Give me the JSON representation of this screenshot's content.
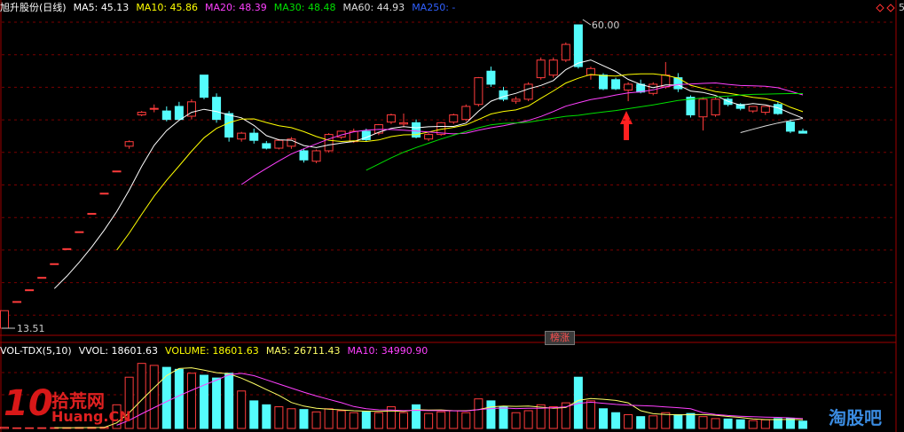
{
  "chart_data": {
    "type": "candlestick",
    "title": "旭升股份(日线)",
    "up_color": "#ff3c3c",
    "down_color": "#54fcfc",
    "ylim": [
      12.83,
      61.36
    ],
    "ohlc": [
      [
        13.51,
        16.2,
        13.51,
        16.2
      ],
      [
        17.6,
        17.6,
        17.6,
        17.6
      ],
      [
        19.4,
        19.4,
        19.4,
        19.4
      ],
      [
        21.3,
        21.3,
        21.3,
        21.3
      ],
      [
        23.4,
        23.4,
        23.4,
        23.4
      ],
      [
        25.7,
        25.7,
        25.7,
        25.7
      ],
      [
        28.3,
        28.3,
        28.3,
        28.3
      ],
      [
        31.1,
        31.1,
        31.1,
        31.1
      ],
      [
        34.2,
        34.2,
        34.2,
        34.2
      ],
      [
        37.6,
        37.6,
        37.6,
        37.6
      ],
      [
        41.4,
        42.3,
        41.0,
        42.1
      ],
      [
        46.2,
        46.8,
        46.0,
        46.6
      ],
      [
        47.2,
        47.8,
        46.6,
        47.2
      ],
      [
        46.8,
        47.5,
        45.2,
        45.5
      ],
      [
        47.5,
        48.2,
        45.3,
        45.5
      ],
      [
        46.0,
        48.6,
        45.5,
        48.2
      ],
      [
        52.3,
        52.3,
        48.6,
        48.9
      ],
      [
        48.9,
        49.5,
        45.0,
        45.5
      ],
      [
        46.4,
        46.8,
        42.1,
        42.8
      ],
      [
        42.5,
        43.6,
        42.1,
        43.4
      ],
      [
        43.4,
        44.1,
        41.8,
        42.3
      ],
      [
        41.8,
        42.2,
        40.9,
        41.1
      ],
      [
        41.1,
        42.5,
        40.9,
        42.3
      ],
      [
        41.4,
        42.8,
        41.0,
        42.5
      ],
      [
        40.7,
        41.0,
        38.9,
        39.3
      ],
      [
        39.1,
        40.9,
        38.8,
        40.7
      ],
      [
        40.7,
        43.4,
        40.4,
        43.2
      ],
      [
        42.8,
        43.8,
        42.5,
        43.7
      ],
      [
        42.1,
        44.1,
        41.9,
        43.7
      ],
      [
        43.7,
        44.1,
        42.1,
        42.4
      ],
      [
        43.4,
        44.8,
        43.1,
        44.7
      ],
      [
        45.1,
        46.4,
        44.8,
        46.2
      ],
      [
        44.8,
        46.4,
        44.3,
        45.0
      ],
      [
        45.0,
        45.5,
        42.6,
        42.8
      ],
      [
        42.5,
        43.4,
        42.2,
        43.2
      ],
      [
        43.2,
        45.1,
        43.0,
        45.0
      ],
      [
        45.1,
        46.4,
        44.8,
        46.2
      ],
      [
        45.5,
        47.8,
        45.2,
        47.5
      ],
      [
        47.8,
        52.0,
        47.5,
        51.9
      ],
      [
        52.9,
        53.6,
        50.5,
        50.9
      ],
      [
        49.9,
        50.5,
        48.3,
        48.6
      ],
      [
        48.3,
        49.0,
        47.9,
        48.6
      ],
      [
        48.6,
        51.2,
        48.3,
        50.9
      ],
      [
        51.9,
        55.0,
        51.6,
        54.6
      ],
      [
        52.3,
        55.0,
        51.9,
        54.6
      ],
      [
        54.6,
        57.3,
        54.3,
        57.0
      ],
      [
        60.0,
        60.0,
        53.3,
        53.6
      ],
      [
        52.3,
        53.6,
        51.6,
        53.3
      ],
      [
        52.3,
        52.6,
        50.0,
        50.2
      ],
      [
        51.6,
        51.9,
        50.0,
        50.2
      ],
      [
        50.0,
        51.2,
        48.3,
        50.9
      ],
      [
        50.9,
        51.6,
        49.5,
        49.7
      ],
      [
        49.5,
        51.2,
        49.2,
        50.9
      ],
      [
        50.5,
        54.3,
        50.2,
        52.3
      ],
      [
        51.9,
        52.6,
        49.7,
        50.2
      ],
      [
        48.9,
        49.2,
        45.8,
        46.2
      ],
      [
        45.9,
        48.9,
        43.8,
        48.6
      ],
      [
        46.2,
        48.9,
        45.9,
        48.6
      ],
      [
        48.6,
        48.9,
        47.5,
        47.8
      ],
      [
        47.8,
        48.0,
        46.9,
        47.2
      ],
      [
        46.8,
        47.5,
        46.5,
        47.5
      ],
      [
        46.6,
        47.5,
        46.2,
        47.5
      ],
      [
        47.8,
        48.2,
        46.2,
        46.4
      ],
      [
        45.1,
        45.5,
        43.4,
        43.7
      ],
      [
        43.7,
        44.1,
        43.4,
        43.4
      ]
    ],
    "ma": [
      {
        "name": "MA5",
        "value": 45.13,
        "color": "#ffffff"
      },
      {
        "name": "MA10",
        "value": 45.86,
        "color": "#ffff00"
      },
      {
        "name": "MA20",
        "value": 48.39,
        "color": "#ff40ff"
      },
      {
        "name": "MA30",
        "value": 48.48,
        "color": "#00e000"
      },
      {
        "name": "MA60",
        "value": 44.93,
        "color": "#dddddd"
      },
      {
        "name": "MA250",
        "value": "-",
        "color": "#3060ff"
      }
    ],
    "high_label": {
      "value": 60.0,
      "label": "60.00"
    },
    "low_label": {
      "value": 13.51,
      "label": "13.51"
    },
    "badge": "榜涨",
    "right_axis_label": "5",
    "volume": {
      "title": "VOL-TDX(5,10)",
      "ylim": [
        0,
        180000
      ],
      "values": [
        3000,
        1500,
        1600,
        1800,
        2000,
        2200,
        2500,
        2800,
        3200,
        60000,
        130000,
        165000,
        160000,
        155000,
        150000,
        140000,
        135000,
        128000,
        140000,
        95000,
        70000,
        60000,
        55000,
        50000,
        48000,
        42000,
        50000,
        45000,
        40000,
        42000,
        40000,
        55000,
        40000,
        60000,
        38000,
        42000,
        45000,
        40000,
        75000,
        70000,
        55000,
        40000,
        45000,
        60000,
        55000,
        65000,
        130000,
        70000,
        50000,
        40000,
        35000,
        30000,
        32000,
        40000,
        35000,
        38000,
        30000,
        25000,
        24000,
        22000,
        20000,
        22000,
        25000,
        26000,
        18601.63
      ],
      "indicators": [
        {
          "name": "VVOL",
          "value": 18601.63,
          "color": "#ffffff"
        },
        {
          "name": "VOLUME",
          "value": 18601.63,
          "color": "#ffff00"
        },
        {
          "name": "MA5",
          "value": 26711.43,
          "color": "#ffff66"
        },
        {
          "name": "MA10",
          "value": {
            "value": 34990.9,
            "label": "34990.90"
          },
          "color": "#ff40ff"
        }
      ]
    },
    "watermarks": [
      "10",
      "拾荒网",
      "Huang.CN",
      "淘股吧"
    ]
  }
}
